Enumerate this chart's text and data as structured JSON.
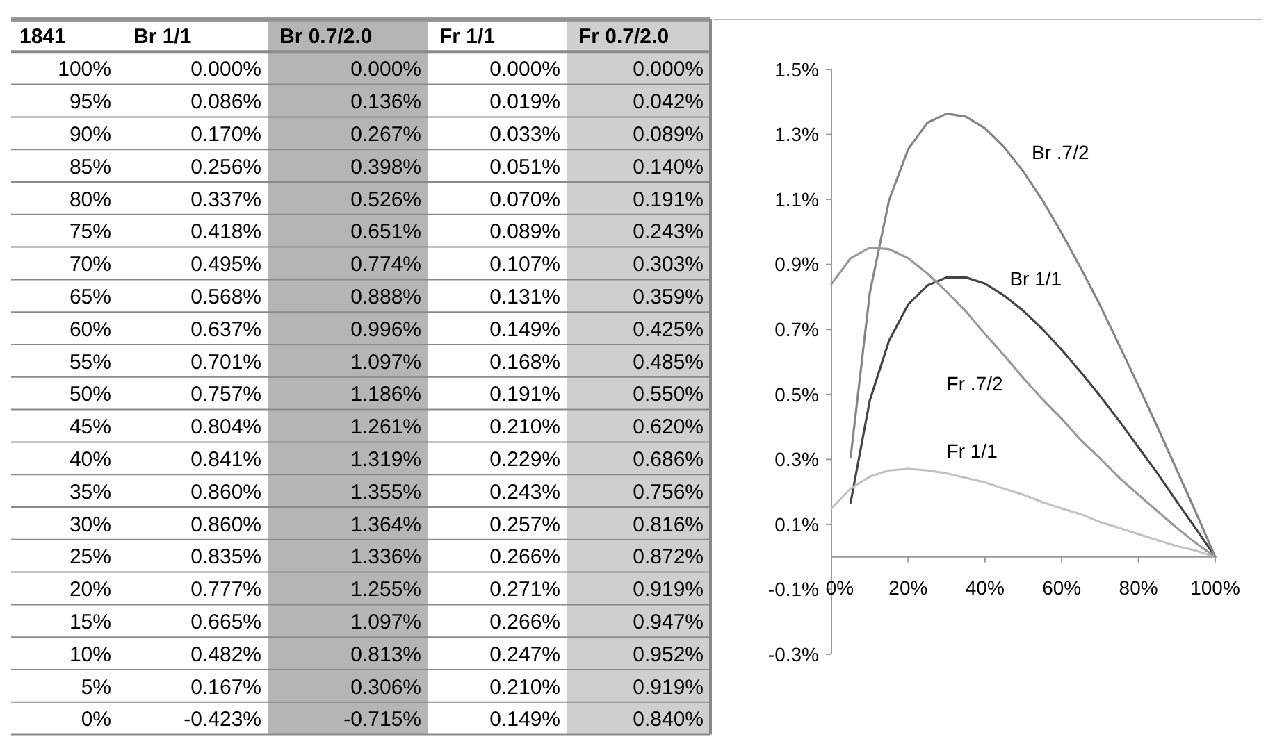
{
  "chart_data": [
    {
      "type": "heatmap",
      "ylabel": "1841",
      "grid": true,
      "categories": [
        "Br 1/1",
        "Br 0.7/2.0",
        "Fr 1/1",
        "Fr 0.7/2.0"
      ],
      "y_categories": [
        "100%",
        "95%",
        "90%",
        "85%",
        "80%",
        "75%",
        "70%",
        "65%",
        "60%",
        "55%",
        "50%",
        "45%",
        "40%",
        "35%",
        "30%",
        "25%",
        "20%",
        "15%",
        "10%",
        "5%",
        "0%"
      ],
      "cells": [
        [
          0,
          0,
          0,
          0
        ],
        [
          0.086,
          0.136,
          0.019,
          0.042
        ],
        [
          0.17,
          0.267,
          0.033,
          0.089
        ],
        [
          0.256,
          0.398,
          0.051,
          0.14
        ],
        [
          0.337,
          0.526,
          0.07,
          0.191
        ],
        [
          0.418,
          0.651,
          0.089,
          0.243
        ],
        [
          0.495,
          0.774,
          0.107,
          0.303
        ],
        [
          0.568,
          0.888,
          0.131,
          0.359
        ],
        [
          0.637,
          0.996,
          0.149,
          0.425
        ],
        [
          0.701,
          1.097,
          0.168,
          0.485
        ],
        [
          0.757,
          1.186,
          0.191,
          0.55
        ],
        [
          0.804,
          1.261,
          0.21,
          0.62
        ],
        [
          0.841,
          1.319,
          0.229,
          0.686
        ],
        [
          0.86,
          1.355,
          0.243,
          0.756
        ],
        [
          0.86,
          1.364,
          0.257,
          0.816
        ],
        [
          0.835,
          1.336,
          0.266,
          0.872
        ],
        [
          0.777,
          1.255,
          0.271,
          0.919
        ],
        [
          0.665,
          1.097,
          0.266,
          0.947
        ],
        [
          0.482,
          0.813,
          0.247,
          0.952
        ],
        [
          0.167,
          0.306,
          0.21,
          0.919
        ],
        [
          -0.423,
          -0.715,
          0.149,
          0.84
        ]
      ],
      "cell_labels": [
        [
          "0.000%",
          "0.000%",
          "0.000%",
          "0.000%"
        ],
        [
          "0.086%",
          "0.136%",
          "0.019%",
          "0.042%"
        ],
        [
          "0.170%",
          "0.267%",
          "0.033%",
          "0.089%"
        ],
        [
          "0.256%",
          "0.398%",
          "0.051%",
          "0.140%"
        ],
        [
          "0.337%",
          "0.526%",
          "0.070%",
          "0.191%"
        ],
        [
          "0.418%",
          "0.651%",
          "0.089%",
          "0.243%"
        ],
        [
          "0.495%",
          "0.774%",
          "0.107%",
          "0.303%"
        ],
        [
          "0.568%",
          "0.888%",
          "0.131%",
          "0.359%"
        ],
        [
          "0.637%",
          "0.996%",
          "0.149%",
          "0.425%"
        ],
        [
          "0.701%",
          "1.097%",
          "0.168%",
          "0.485%"
        ],
        [
          "0.757%",
          "1.186%",
          "0.191%",
          "0.550%"
        ],
        [
          "0.804%",
          "1.261%",
          "0.210%",
          "0.620%"
        ],
        [
          "0.841%",
          "1.319%",
          "0.229%",
          "0.686%"
        ],
        [
          "0.860%",
          "1.355%",
          "0.243%",
          "0.756%"
        ],
        [
          "0.860%",
          "1.364%",
          "0.257%",
          "0.816%"
        ],
        [
          "0.835%",
          "1.336%",
          "0.266%",
          "0.872%"
        ],
        [
          "0.777%",
          "1.255%",
          "0.271%",
          "0.919%"
        ],
        [
          "0.665%",
          "1.097%",
          "0.266%",
          "0.947%"
        ],
        [
          "0.482%",
          "0.813%",
          "0.247%",
          "0.952%"
        ],
        [
          "0.167%",
          "0.306%",
          "0.210%",
          "0.919%"
        ],
        [
          "-0.423%",
          "-0.715%",
          "0.149%",
          "0.840%"
        ]
      ]
    },
    {
      "type": "line",
      "x": [
        100,
        95,
        90,
        85,
        80,
        75,
        70,
        65,
        60,
        55,
        50,
        45,
        40,
        35,
        30,
        25,
        20,
        15,
        10,
        5,
        0
      ],
      "xlim": [
        0,
        100
      ],
      "xticks": [
        {
          "value": 0,
          "label": "0%"
        },
        {
          "value": 20,
          "label": "20%"
        },
        {
          "value": 40,
          "label": "40%"
        },
        {
          "value": 60,
          "label": "60%"
        },
        {
          "value": 80,
          "label": "80%"
        },
        {
          "value": 100,
          "label": "100%"
        }
      ],
      "ylim": [
        -0.3,
        1.5
      ],
      "yticks": [
        {
          "value": -0.3,
          "label": "-0.3%"
        },
        {
          "value": -0.1,
          "label": "-0.1%"
        },
        {
          "value": 0.1,
          "label": "0.1%"
        },
        {
          "value": 0.3,
          "label": "0.3%"
        },
        {
          "value": 0.5,
          "label": "0.5%"
        },
        {
          "value": 0.7,
          "label": "0.7%"
        },
        {
          "value": 0.9,
          "label": "0.9%"
        },
        {
          "value": 1.1,
          "label": "1.1%"
        },
        {
          "value": 1.3,
          "label": "1.3%"
        },
        {
          "value": 1.5,
          "label": "1.5%"
        }
      ],
      "grid": false,
      "marker": "none",
      "line_style": "solid",
      "series": [
        {
          "name": "Br 1/1",
          "color": "#444444",
          "values": [
            0,
            0.086,
            0.17,
            0.256,
            0.337,
            0.418,
            0.495,
            0.568,
            0.637,
            0.701,
            0.757,
            0.804,
            0.841,
            0.86,
            0.86,
            0.835,
            0.777,
            0.665,
            0.482,
            0.167,
            null
          ]
        },
        {
          "name": "Br .7/2",
          "color": "#858585",
          "values": [
            0,
            0.136,
            0.267,
            0.398,
            0.526,
            0.651,
            0.774,
            0.888,
            0.996,
            1.097,
            1.186,
            1.261,
            1.319,
            1.355,
            1.364,
            1.336,
            1.255,
            1.097,
            0.813,
            0.306,
            null
          ]
        },
        {
          "name": "Fr 1/1",
          "color": "#c2c2c2",
          "values": [
            0,
            0.019,
            0.033,
            0.051,
            0.07,
            0.089,
            0.107,
            0.131,
            0.149,
            0.168,
            0.191,
            0.21,
            0.229,
            0.243,
            0.257,
            0.266,
            0.271,
            0.266,
            0.247,
            0.21,
            0.149
          ]
        },
        {
          "name": "Fr .7/2",
          "color": "#9a9a9a",
          "values": [
            0,
            0.042,
            0.089,
            0.14,
            0.191,
            0.243,
            0.303,
            0.359,
            0.425,
            0.485,
            0.55,
            0.62,
            0.686,
            0.756,
            0.816,
            0.872,
            0.919,
            0.947,
            0.952,
            0.919,
            0.84
          ]
        }
      ]
    }
  ]
}
